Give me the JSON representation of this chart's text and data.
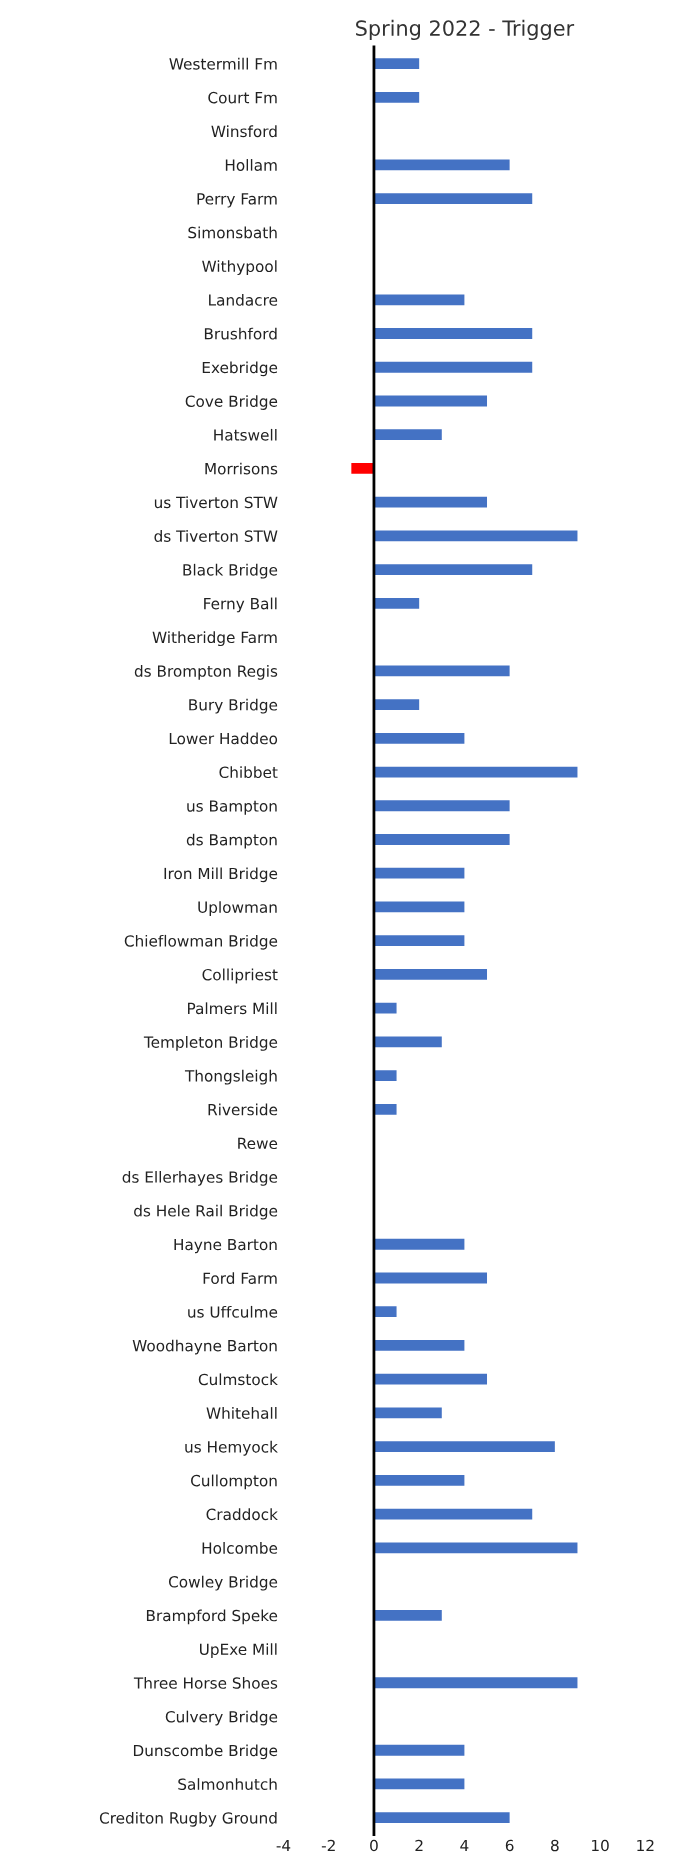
{
  "chart_data": {
    "type": "bar",
    "orientation": "horizontal",
    "title": "Spring 2022 - Trigger",
    "categories": [
      "Westermill Fm",
      "Court Fm",
      "Winsford",
      "Hollam",
      "Perry Farm",
      "Simonsbath",
      "Withypool",
      "Landacre",
      "Brushford",
      "Exebridge",
      "Cove Bridge",
      "Hatswell",
      "Morrisons",
      "us Tiverton STW",
      "ds Tiverton STW",
      "Black Bridge",
      "Ferny Ball",
      "Witheridge Farm",
      "ds Brompton Regis",
      "Bury Bridge",
      "Lower Haddeo",
      "Chibbet",
      "us Bampton",
      "ds Bampton",
      "Iron Mill Bridge",
      "Uplowman",
      "Chieflowman Bridge",
      "Collipriest",
      "Palmers Mill",
      "Templeton Bridge",
      "Thongsleigh",
      "Riverside",
      "Rewe",
      "ds Ellerhayes Bridge",
      "ds Hele Rail Bridge",
      "Hayne Barton",
      "Ford Farm",
      "us Uffculme",
      "Woodhayne Barton",
      "Culmstock",
      "Whitehall",
      "us Hemyock",
      "Cullompton",
      "Craddock",
      "Holcombe",
      "Cowley Bridge",
      "Brampford Speke",
      "UpExe Mill",
      "Three Horse Shoes",
      "Culvery Bridge",
      "Dunscombe Bridge",
      "Salmonhutch",
      "Crediton Rugby Ground"
    ],
    "values": [
      2,
      2,
      0,
      6,
      7,
      0,
      0,
      4,
      7,
      7,
      5,
      3,
      -1,
      5,
      9,
      7,
      2,
      0,
      6,
      2,
      4,
      9,
      6,
      6,
      4,
      4,
      4,
      5,
      1,
      3,
      1,
      1,
      0,
      0,
      0,
      4,
      5,
      1,
      4,
      5,
      3,
      8,
      4,
      7,
      9,
      0,
      3,
      0,
      9,
      0,
      4,
      4,
      6
    ],
    "colors": [
      "#4472c4",
      "#4472c4",
      "#4472c4",
      "#4472c4",
      "#4472c4",
      "#4472c4",
      "#4472c4",
      "#4472c4",
      "#4472c4",
      "#4472c4",
      "#4472c4",
      "#4472c4",
      "#ff0000",
      "#4472c4",
      "#4472c4",
      "#4472c4",
      "#4472c4",
      "#4472c4",
      "#4472c4",
      "#4472c4",
      "#4472c4",
      "#4472c4",
      "#4472c4",
      "#4472c4",
      "#4472c4",
      "#4472c4",
      "#4472c4",
      "#4472c4",
      "#4472c4",
      "#4472c4",
      "#4472c4",
      "#4472c4",
      "#4472c4",
      "#4472c4",
      "#4472c4",
      "#4472c4",
      "#4472c4",
      "#4472c4",
      "#4472c4",
      "#4472c4",
      "#4472c4",
      "#4472c4",
      "#4472c4",
      "#4472c4",
      "#4472c4",
      "#4472c4",
      "#4472c4",
      "#4472c4",
      "#4472c4",
      "#4472c4",
      "#4472c4",
      "#4472c4",
      "#4472c4"
    ],
    "xlim": [
      -4,
      12
    ],
    "xticks": [
      -4,
      -2,
      0,
      2,
      4,
      6,
      8,
      10,
      12
    ]
  }
}
